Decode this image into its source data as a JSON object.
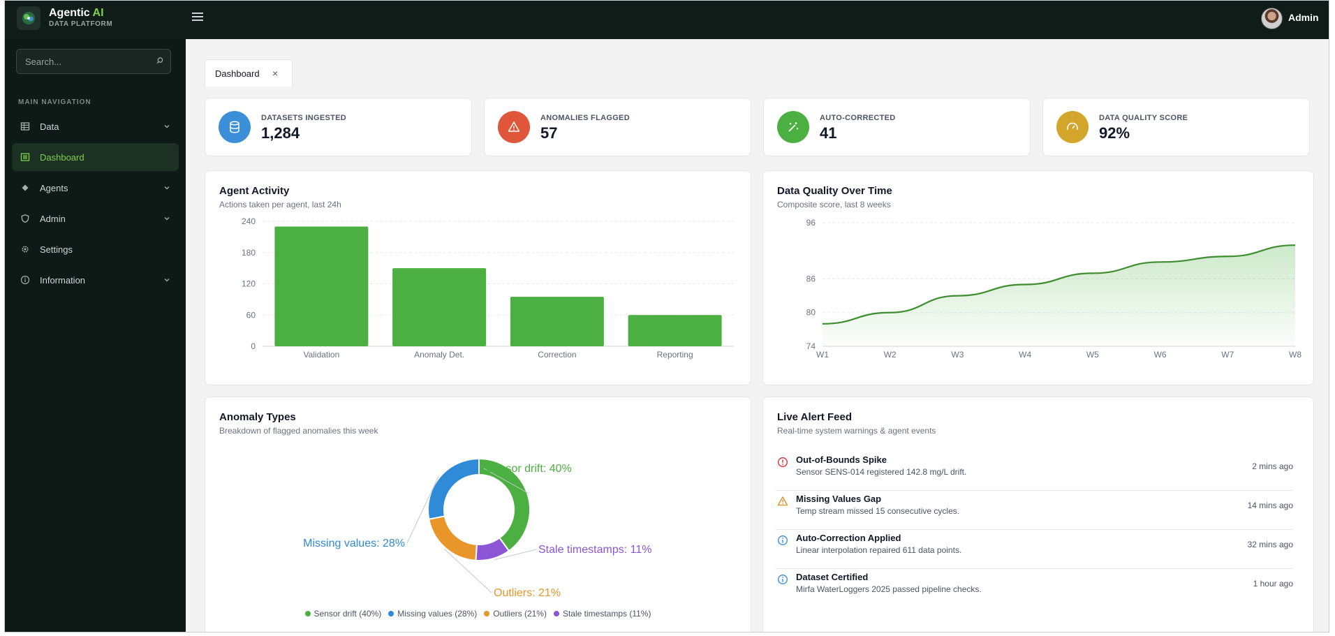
{
  "brand": {
    "name": "Agentic",
    "name_accent": "AI",
    "subtitle": "DATA PLATFORM"
  },
  "header": {
    "user_name": "Admin"
  },
  "search": {
    "placeholder": "Search..."
  },
  "sidebar": {
    "heading": "MAIN NAVIGATION",
    "items": [
      {
        "label": "Data",
        "icon": "table-icon",
        "expandable": true
      },
      {
        "label": "Dashboard",
        "icon": "dashboard-icon",
        "active": true
      },
      {
        "label": "Agents",
        "icon": "diamond-icon",
        "expandable": true
      },
      {
        "label": "Admin",
        "icon": "shield-icon",
        "expandable": true
      },
      {
        "label": "Settings",
        "icon": "gear-icon"
      },
      {
        "label": "Information",
        "icon": "info-icon",
        "expandable": true
      }
    ]
  },
  "tabs": [
    {
      "label": "Dashboard",
      "close": "×"
    }
  ],
  "stats": [
    {
      "label": "DATASETS INGESTED",
      "value": "1,284",
      "color": "#3b8fd8",
      "icon": "database-icon"
    },
    {
      "label": "ANOMALIES FLAGGED",
      "value": "57",
      "color": "#e0563a",
      "icon": "warning-icon"
    },
    {
      "label": "AUTO-CORRECTED",
      "value": "41",
      "color": "#4caf42",
      "icon": "magic-wand-icon"
    },
    {
      "label": "DATA QUALITY SCORE",
      "value": "92%",
      "color": "#d4a52b",
      "icon": "gauge-icon"
    }
  ],
  "panels": {
    "agent_activity": {
      "title": "Agent Activity",
      "subtitle": "Actions taken per agent, last 24h"
    },
    "quality": {
      "title": "Data Quality Over Time",
      "subtitle": "Composite score, last 8 weeks"
    },
    "anomaly": {
      "title": "Anomaly Types",
      "subtitle": "Breakdown of flagged anomalies this week"
    },
    "alerts": {
      "title": "Live Alert Feed",
      "subtitle": "Real-time system warnings & agent events"
    }
  },
  "chart_data": [
    {
      "type": "bar",
      "title": "Agent Activity",
      "categories": [
        "Validation",
        "Anomaly Det.",
        "Correction",
        "Reporting"
      ],
      "values": [
        230,
        150,
        95,
        60
      ],
      "ylim": [
        0,
        240
      ],
      "yticks": [
        0,
        60,
        120,
        180,
        240
      ],
      "color": "#4caf42",
      "grid": true
    },
    {
      "type": "area",
      "title": "Data Quality Over Time",
      "x": [
        "W1",
        "W2",
        "W3",
        "W4",
        "W5",
        "W6",
        "W7",
        "W8"
      ],
      "values": [
        78,
        80,
        83,
        85,
        87,
        89,
        90,
        92
      ],
      "ylim": [
        74,
        96
      ],
      "yticks": [
        74,
        80,
        86,
        96
      ],
      "color": "#3e8e2f",
      "grid": true
    },
    {
      "type": "pie",
      "title": "Anomaly Types",
      "donut": true,
      "slices": [
        {
          "name": "Sensor drift",
          "value": 40,
          "color": "#4caf42",
          "label": "Sensor drift: 40%",
          "legend": "Sensor drift (40%)"
        },
        {
          "name": "Stale timestamps",
          "value": 11,
          "color": "#8c55d6",
          "label": "Stale timestamps: 11%",
          "legend": "Stale timestamps (11%)"
        },
        {
          "name": "Outliers",
          "value": 21,
          "color": "#e8962a",
          "label": "Outliers: 21%",
          "legend": "Outliers (21%)"
        },
        {
          "name": "Missing values",
          "value": 28,
          "color": "#2f8ad8",
          "label": "Missing values: 28%",
          "legend": "Missing values (28%)"
        }
      ],
      "legend_order": [
        0,
        3,
        2,
        1
      ],
      "legend_placement": "bottom"
    }
  ],
  "alerts": [
    {
      "title": "Out-of-Bounds Spike",
      "desc": "Sensor SENS-014 registered 142.8 mg/L drift.",
      "time": "2 mins ago",
      "icon": "error-icon",
      "color": "#dc2626"
    },
    {
      "title": "Missing Values Gap",
      "desc": "Temp stream missed 15 consecutive cycles.",
      "time": "14 mins ago",
      "icon": "warning-icon",
      "color": "#e08a1e"
    },
    {
      "title": "Auto-Correction Applied",
      "desc": "Linear interpolation repaired 611 data points.",
      "time": "32 mins ago",
      "icon": "info-icon",
      "color": "#2f8ad8"
    },
    {
      "title": "Dataset Certified",
      "desc": "Mirfa WaterLoggers 2025 passed pipeline checks.",
      "time": "1 hour ago",
      "icon": "info-icon",
      "color": "#2f8ad8"
    }
  ]
}
